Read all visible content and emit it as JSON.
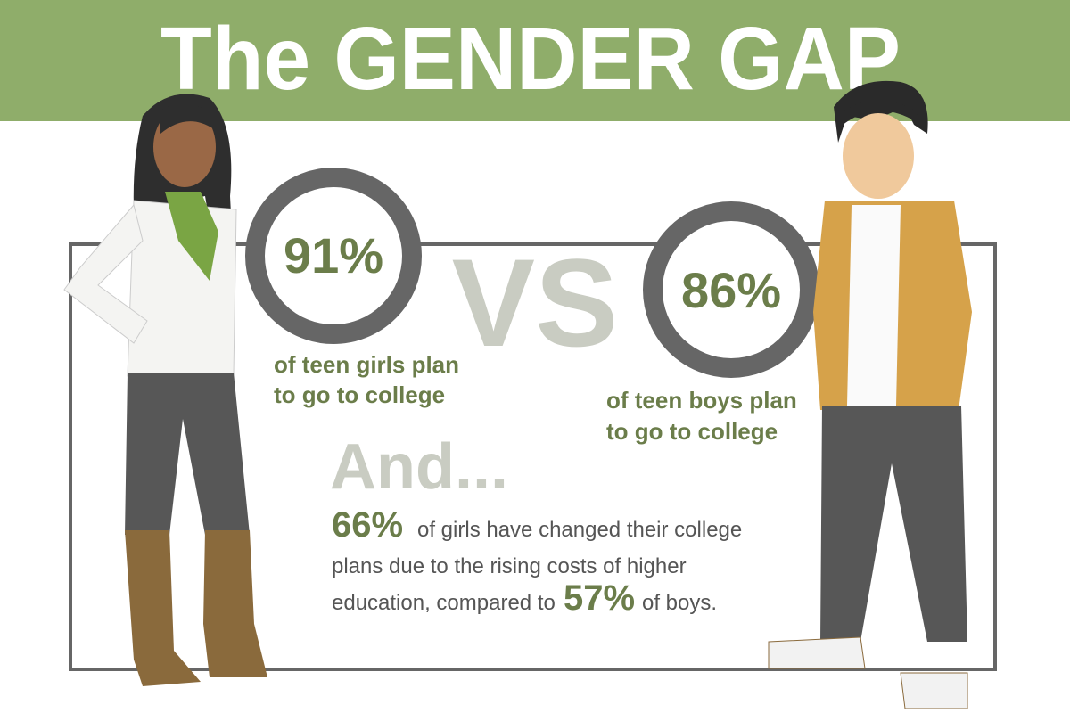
{
  "header": {
    "title": "The GENDER GAP"
  },
  "girls": {
    "stat": "91%",
    "caption": [
      "of teen girls plan",
      "to go to college"
    ]
  },
  "versus": "VS",
  "boys": {
    "stat": "86%",
    "caption": [
      "of teen boys plan",
      "to go to college"
    ]
  },
  "note": {
    "heading": "And...",
    "girls_stat": "66%",
    "line_1": "of girls have changed their college",
    "line_2": "plans due to the rising costs of higher",
    "line_3": "education, compared to",
    "boys_stat": "57%",
    "line_3_end": "of boys."
  }
}
